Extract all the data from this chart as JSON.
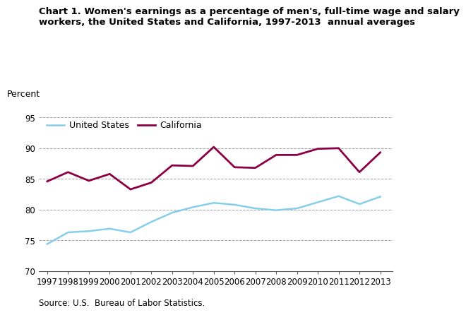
{
  "title_line1": "Chart 1. Women's earnings as a percentage of men's, full-time wage and salary",
  "title_line2": "workers, the United States and California, 1997-2013  annual averages",
  "ylabel": "Percent",
  "source": "Source: U.S.  Bureau of Labor Statistics.",
  "years": [
    1997,
    1998,
    1999,
    2000,
    2001,
    2002,
    2003,
    2004,
    2005,
    2006,
    2007,
    2008,
    2009,
    2010,
    2011,
    2012,
    2013
  ],
  "us_data": [
    74.4,
    76.3,
    76.5,
    76.9,
    76.3,
    78.0,
    79.5,
    80.4,
    81.1,
    80.8,
    80.2,
    79.9,
    80.2,
    81.2,
    82.2,
    80.9,
    82.1
  ],
  "ca_data": [
    84.6,
    86.1,
    84.7,
    85.8,
    83.3,
    84.4,
    87.2,
    87.1,
    90.2,
    86.9,
    86.8,
    88.9,
    88.9,
    89.9,
    90.0,
    86.1,
    89.3
  ],
  "us_color": "#87CEEB",
  "ca_color": "#8B0045",
  "us_label": "United States",
  "ca_label": "California",
  "ylim": [
    70,
    96
  ],
  "yticks": [
    70,
    75,
    80,
    85,
    90,
    95
  ],
  "grid_color": "#999999",
  "background_color": "#ffffff",
  "title_fontsize": 9.5,
  "legend_fontsize": 9,
  "tick_fontsize": 8.5,
  "ylabel_fontsize": 9,
  "source_fontsize": 8.5
}
